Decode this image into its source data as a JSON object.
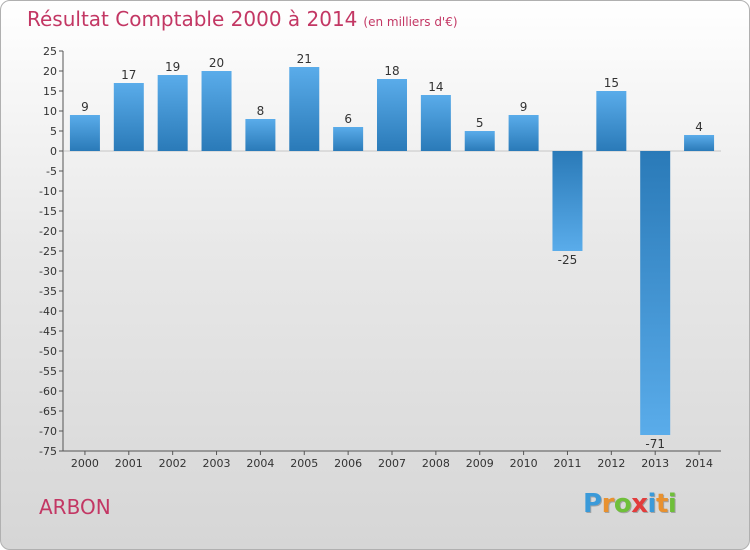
{
  "header": {
    "title": "Résultat Comptable 2000 à 2014",
    "subtitle": "(en milliers d'€)"
  },
  "commune": "ARBON",
  "logo": {
    "letters": [
      "P",
      "r",
      "o",
      "x",
      "i",
      "t",
      "i"
    ],
    "colors": [
      "#3a9ad9",
      "#e8912f",
      "#6fbf3a",
      "#e23c3c",
      "#3a9ad9",
      "#e8912f",
      "#6fbf3a"
    ]
  },
  "chart_data": {
    "type": "bar",
    "title": "Résultat Comptable 2000 à 2014",
    "xlabel": "",
    "ylabel": "",
    "categories": [
      "2000",
      "2001",
      "2002",
      "2003",
      "2004",
      "2005",
      "2006",
      "2007",
      "2008",
      "2009",
      "2010",
      "2011",
      "2012",
      "2013",
      "2014"
    ],
    "values": [
      9,
      17,
      19,
      20,
      8,
      21,
      6,
      18,
      14,
      5,
      9,
      -25,
      15,
      -71,
      4
    ],
    "ylim": [
      -75,
      25
    ],
    "yticks": [
      25,
      20,
      15,
      10,
      5,
      0,
      -5,
      -10,
      -15,
      -20,
      -25,
      -30,
      -35,
      -40,
      -45,
      -50,
      -55,
      -60,
      -65,
      -70,
      -75
    ],
    "grid": false,
    "colors": {
      "bar_light": "#5aacea",
      "bar_dark": "#2a7ab8",
      "axis": "#555555",
      "text": "#333333"
    }
  }
}
